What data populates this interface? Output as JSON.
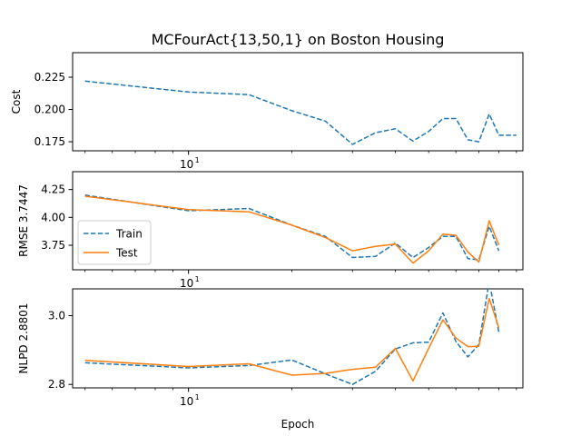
{
  "title": "MCFourAct{13,50,1} on Boston Housing",
  "xlabel": "Epoch",
  "colors": {
    "train": "#1f77b4",
    "test": "#ff7f0e"
  },
  "chart_data": [
    {
      "type": "line",
      "ylabel": "Cost",
      "xscale": "log",
      "xlim": [
        4.6,
        94
      ],
      "ylim": [
        0.168,
        0.244
      ],
      "yticks": [
        0.175,
        0.2,
        0.225
      ],
      "ytick_labels": [
        "0.175",
        "0.200",
        "0.225"
      ],
      "xticks": [
        10
      ],
      "xtick_labels": [
        "10"
      ],
      "legend": null,
      "series": [
        {
          "name": "",
          "style": "dashed",
          "color": "#1f77b4",
          "x": [
            5,
            10,
            15,
            20,
            25,
            30,
            35,
            40,
            45,
            50,
            55,
            60,
            65,
            70,
            75,
            80,
            85,
            90
          ],
          "y": [
            0.222,
            0.2135,
            0.2115,
            0.199,
            0.191,
            0.173,
            0.182,
            0.185,
            0.1755,
            0.183,
            0.193,
            0.193,
            0.1765,
            0.175,
            0.1965,
            0.18,
            0.18,
            0.18
          ]
        }
      ]
    },
    {
      "type": "line",
      "ylabel": "RMSE 3.7447",
      "xscale": "log",
      "xlim": [
        4.6,
        94
      ],
      "ylim": [
        3.53,
        4.41
      ],
      "yticks": [
        3.75,
        4.0,
        4.25
      ],
      "ytick_labels": [
        "3.75",
        "4.00",
        "4.25"
      ],
      "xticks": [
        10
      ],
      "xtick_labels": [
        "10"
      ],
      "legend": "lower-left",
      "series": [
        {
          "name": "Train",
          "style": "dashed",
          "color": "#1f77b4",
          "x": [
            5,
            10,
            15,
            20,
            25,
            30,
            35,
            40,
            45,
            50,
            55,
            60,
            65,
            70,
            75,
            80
          ],
          "y": [
            4.2,
            4.06,
            4.08,
            3.93,
            3.83,
            3.64,
            3.65,
            3.77,
            3.64,
            3.73,
            3.83,
            3.83,
            3.63,
            3.62,
            3.92,
            3.7
          ]
        },
        {
          "name": "Test",
          "style": "solid",
          "color": "#ff7f0e",
          "x": [
            5,
            10,
            15,
            20,
            25,
            30,
            35,
            40,
            45,
            50,
            55,
            60,
            65,
            70,
            75,
            80
          ],
          "y": [
            4.19,
            4.07,
            4.05,
            3.93,
            3.82,
            3.7,
            3.74,
            3.76,
            3.59,
            3.7,
            3.85,
            3.84,
            3.69,
            3.6,
            3.97,
            3.75
          ]
        }
      ]
    },
    {
      "type": "line",
      "ylabel": "NLPD 2.8801",
      "xscale": "log",
      "xlim": [
        4.6,
        94
      ],
      "ylim": [
        2.79,
        3.078
      ],
      "yticks": [
        2.8,
        3.0
      ],
      "ytick_labels": [
        "2.8",
        "3.0"
      ],
      "xticks": [
        10
      ],
      "xtick_labels": [
        "10"
      ],
      "legend": null,
      "series": [
        {
          "name": "",
          "style": "dashed",
          "color": "#1f77b4",
          "x": [
            5,
            10,
            15,
            20,
            25,
            30,
            35,
            40,
            45,
            50,
            55,
            60,
            65,
            70,
            75,
            80
          ],
          "y": [
            2.863,
            2.848,
            2.855,
            2.871,
            2.831,
            2.8,
            2.838,
            2.903,
            2.921,
            2.923,
            3.008,
            2.925,
            2.88,
            2.916,
            3.1,
            2.952
          ]
        },
        {
          "name": "",
          "style": "solid",
          "color": "#ff7f0e",
          "x": [
            5,
            10,
            15,
            20,
            25,
            30,
            35,
            40,
            45,
            50,
            55,
            60,
            65,
            70,
            75,
            80
          ],
          "y": [
            2.87,
            2.852,
            2.86,
            2.827,
            2.832,
            2.844,
            2.85,
            2.905,
            2.81,
            2.905,
            2.988,
            2.935,
            2.91,
            2.911,
            3.05,
            2.965
          ]
        }
      ]
    }
  ]
}
